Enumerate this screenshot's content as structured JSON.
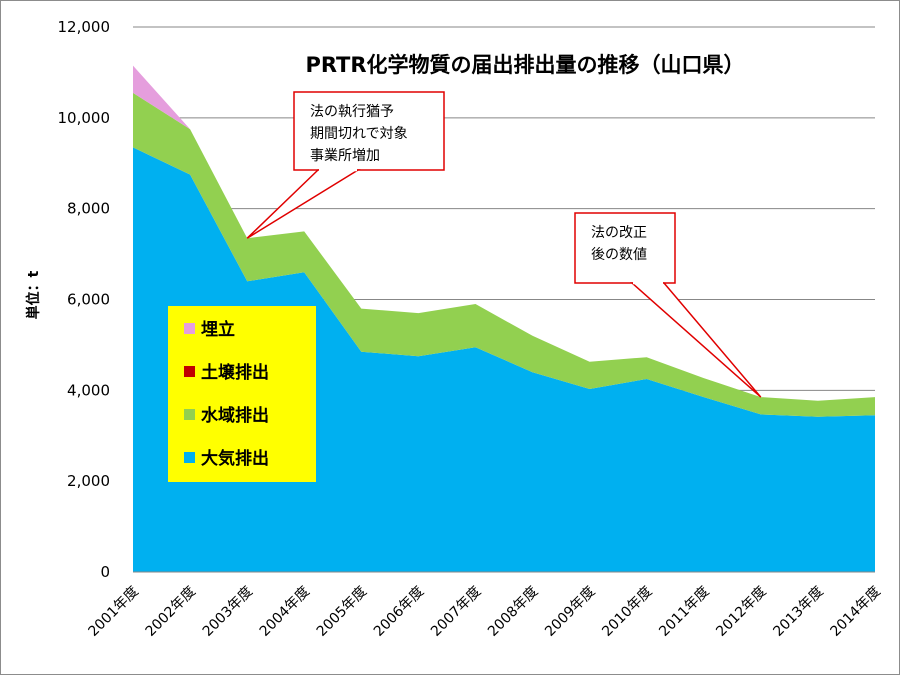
{
  "chart_data": {
    "type": "area",
    "stacked": true,
    "title": "PRTR化学物質の届出排出量の推移（山口県）",
    "ylabel": "単位：t",
    "ylim": [
      0,
      12000
    ],
    "yticks": [
      0,
      2000,
      4000,
      6000,
      8000,
      10000,
      12000
    ],
    "ytick_labels": [
      "0",
      "2,000",
      "4,000",
      "6,000",
      "8,000",
      "10,000",
      "12,000"
    ],
    "grid": true,
    "legend_position": "left",
    "categories": [
      "2001年度",
      "2002年度",
      "2003年度",
      "2004年度",
      "2005年度",
      "2006年度",
      "2007年度",
      "2008年度",
      "2009年度",
      "2010年度",
      "2011年度",
      "2012年度",
      "2013年度",
      "2014年度"
    ],
    "series": [
      {
        "name": "大気排出",
        "color": "#00b0f0",
        "values": [
          9350,
          8750,
          6400,
          6600,
          4850,
          4750,
          4950,
          4400,
          4030,
          4250,
          3850,
          3470,
          3420,
          3450
        ]
      },
      {
        "name": "水域排出",
        "color": "#92d050",
        "values": [
          1200,
          1000,
          950,
          900,
          950,
          950,
          950,
          800,
          600,
          480,
          420,
          380,
          350,
          400
        ]
      },
      {
        "name": "土壌排出",
        "color": "#c00000",
        "values": [
          0,
          0,
          0,
          0,
          0,
          0,
          0,
          0,
          0,
          0,
          0,
          0,
          0,
          0
        ]
      },
      {
        "name": "埋立",
        "color": "#e59edd",
        "values": [
          600,
          0,
          0,
          0,
          0,
          0,
          0,
          0,
          0,
          0,
          0,
          0,
          0,
          0
        ]
      }
    ],
    "legend_order": [
      "埋立",
      "土壌排出",
      "水域排出",
      "大気排出"
    ],
    "annotations": [
      {
        "lines": [
          "法の執行猶予",
          "期間切れで対象",
          "事業所増加"
        ],
        "target_category": "2003年度",
        "target_value": 7350
      },
      {
        "lines": [
          "法の改正",
          "後の数値"
        ],
        "target_category": "2012年度",
        "target_value": 3850
      }
    ]
  }
}
